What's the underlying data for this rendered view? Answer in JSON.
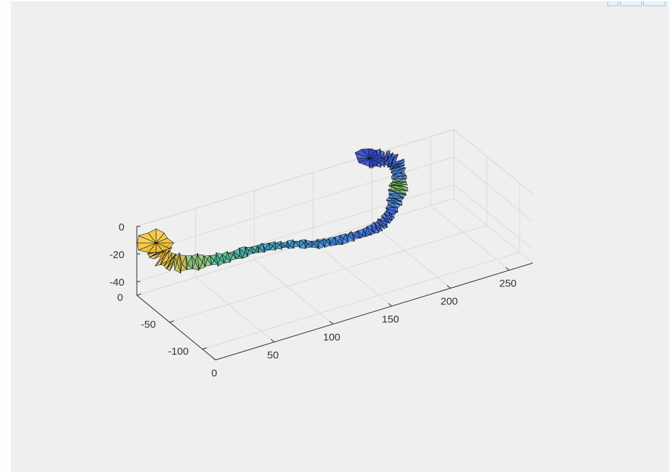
{
  "chart_data": {
    "type": "surface",
    "title": "",
    "xlabel": "",
    "ylabel": "",
    "zlabel": "",
    "grid": true,
    "box": true,
    "colormap": "parula",
    "xlim": [
      0,
      270
    ],
    "ylim": [
      -120,
      0
    ],
    "zlim": [
      -50,
      0
    ],
    "xticks": [
      "0",
      "50",
      "100",
      "150",
      "200",
      "250"
    ],
    "yticks": [
      "0",
      "-50",
      "-100"
    ],
    "zticks": [
      "0",
      "-20",
      "-40"
    ],
    "ribbon": [
      {
        "x": 12,
        "y": -8,
        "z": -12,
        "width": 18,
        "color": "#f9c63a"
      },
      {
        "x": 10,
        "y": -20,
        "z": -16,
        "width": 16,
        "color": "#e7b733"
      },
      {
        "x": 14,
        "y": -32,
        "z": -18,
        "width": 12,
        "color": "#c4b53c"
      },
      {
        "x": 30,
        "y": -40,
        "z": -18,
        "width": 10,
        "color": "#7fbf68"
      },
      {
        "x": 50,
        "y": -42,
        "z": -20,
        "width": 7,
        "color": "#45b68b"
      },
      {
        "x": 70,
        "y": -42,
        "z": -20,
        "width": 6,
        "color": "#33a8a0"
      },
      {
        "x": 90,
        "y": -41,
        "z": -22,
        "width": 5,
        "color": "#2f97b9"
      },
      {
        "x": 110,
        "y": -42,
        "z": -25,
        "width": 5,
        "color": "#2c8dc6"
      },
      {
        "x": 130,
        "y": -43,
        "z": -30,
        "width": 6,
        "color": "#2b80d2"
      },
      {
        "x": 150,
        "y": -43,
        "z": -32,
        "width": 6,
        "color": "#2c74db"
      },
      {
        "x": 170,
        "y": -43,
        "z": -32,
        "width": 6,
        "color": "#2a67df"
      },
      {
        "x": 185,
        "y": -40,
        "z": -32,
        "width": 7,
        "color": "#2e63e0"
      },
      {
        "x": 198,
        "y": -32,
        "z": -30,
        "width": 8,
        "color": "#3563e4"
      },
      {
        "x": 210,
        "y": -18,
        "z": -28,
        "width": 10,
        "color": "#3a7fd8"
      },
      {
        "x": 220,
        "y": -6,
        "z": -25,
        "width": 12,
        "color": "#6db85e"
      },
      {
        "x": 226,
        "y": 5,
        "z": -22,
        "width": 10,
        "color": "#3b78d8"
      },
      {
        "x": 228,
        "y": 14,
        "z": -18,
        "width": 10,
        "color": "#2d5fe0"
      },
      {
        "x": 222,
        "y": 20,
        "z": -16,
        "width": 10,
        "color": "#2c4fd6"
      },
      {
        "x": 210,
        "y": 22,
        "z": -14,
        "width": 12,
        "color": "#2941c9"
      }
    ]
  }
}
